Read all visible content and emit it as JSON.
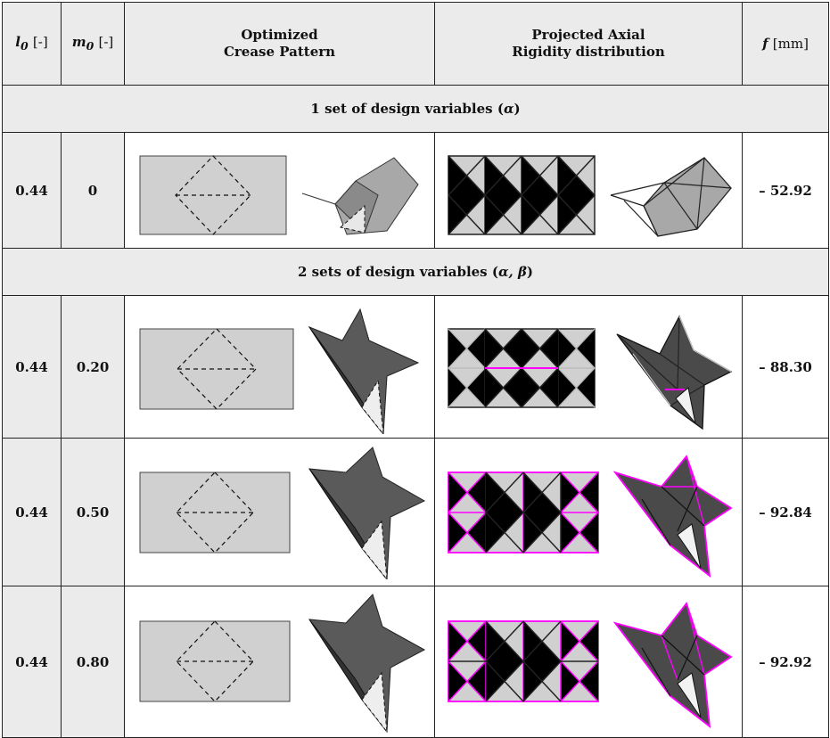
{
  "headers": {
    "l0": "l",
    "l0_sub": "0",
    "l0_unit": "[-]",
    "m0": "m",
    "m0_sub": "0",
    "m0_unit": "[-]",
    "crease_line1": "Optimized",
    "crease_line2": "Crease Pattern",
    "rigidity_line1": "Projected Axial",
    "rigidity_line2": "Rigidity distribution",
    "f": "f",
    "f_unit": "[mm]"
  },
  "sections": [
    {
      "label": "1 set of design variables (",
      "vars": "α",
      "close": ")"
    },
    {
      "label": "2 sets of design variables (",
      "vars": "α, β",
      "close": ")"
    }
  ],
  "rows": [
    {
      "l0": "0.44",
      "m0": "0",
      "f": "– 52.92"
    },
    {
      "l0": "0.44",
      "m0": "0.20",
      "f": "– 88.30"
    },
    {
      "l0": "0.44",
      "m0": "0.50",
      "f": "– 92.84"
    },
    {
      "l0": "0.44",
      "m0": "0.80",
      "f": "– 92.92"
    }
  ],
  "colors": {
    "header_bg": "#ebebeb",
    "panel_fill": "#d0d0d0",
    "soft_bar": "#b8b8b8",
    "stiff_bar": "#000000",
    "magenta_bar": "#ff00ff",
    "folded_dark": "#4a4a4a",
    "folded_light": "#a8a8a8"
  }
}
